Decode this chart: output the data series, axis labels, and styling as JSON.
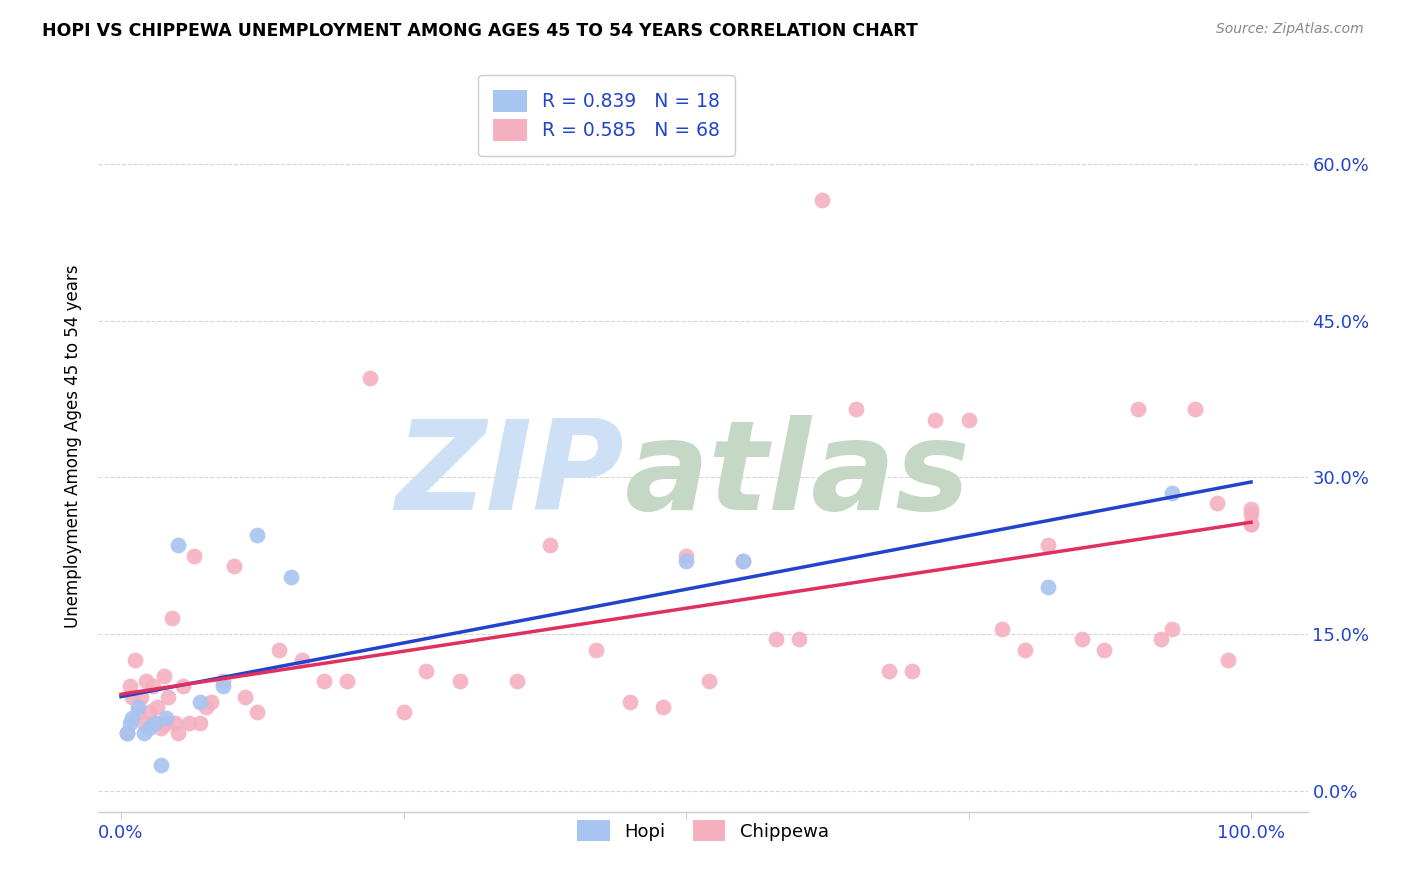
{
  "title": "HOPI VS CHIPPEWA UNEMPLOYMENT AMONG AGES 45 TO 54 YEARS CORRELATION CHART",
  "source": "Source: ZipAtlas.com",
  "ylabel": "Unemployment Among Ages 45 to 54 years",
  "xlim": [
    -0.02,
    1.05
  ],
  "ylim": [
    -0.02,
    0.68
  ],
  "xticks": [
    0.0,
    0.25,
    0.5,
    0.75,
    1.0
  ],
  "xtick_labels": [
    "0.0%",
    "",
    "",
    "",
    "100.0%"
  ],
  "ytick_labels_right": [
    "0.0%",
    "15.0%",
    "30.0%",
    "45.0%",
    "60.0%"
  ],
  "yticks": [
    0.0,
    0.15,
    0.3,
    0.45,
    0.6
  ],
  "hopi_color": "#a8c4f0",
  "chippewa_color": "#f5b0c0",
  "hopi_line_color": "#2244cc",
  "chippewa_line_color": "#e03060",
  "legend_hopi_label": "R = 0.839   N = 18",
  "legend_chippewa_label": "R = 0.585   N = 68",
  "legend_label_color": "#2244cc",
  "hopi_x": [
    0.005,
    0.008,
    0.01,
    0.015,
    0.02,
    0.025,
    0.03,
    0.035,
    0.04,
    0.05,
    0.07,
    0.09,
    0.12,
    0.15,
    0.5,
    0.55,
    0.82,
    0.93
  ],
  "hopi_y": [
    0.055,
    0.065,
    0.07,
    0.08,
    0.055,
    0.06,
    0.065,
    0.025,
    0.07,
    0.235,
    0.085,
    0.1,
    0.245,
    0.205,
    0.22,
    0.22,
    0.195,
    0.285
  ],
  "chippewa_x": [
    0.005,
    0.008,
    0.01,
    0.012,
    0.015,
    0.018,
    0.02,
    0.022,
    0.025,
    0.028,
    0.03,
    0.032,
    0.035,
    0.038,
    0.04,
    0.042,
    0.045,
    0.048,
    0.05,
    0.055,
    0.06,
    0.065,
    0.07,
    0.075,
    0.08,
    0.09,
    0.1,
    0.11,
    0.12,
    0.14,
    0.16,
    0.18,
    0.2,
    0.22,
    0.25,
    0.27,
    0.3,
    0.35,
    0.38,
    0.42,
    0.45,
    0.48,
    0.5,
    0.52,
    0.55,
    0.58,
    0.6,
    0.62,
    0.65,
    0.68,
    0.7,
    0.72,
    0.75,
    0.78,
    0.8,
    0.82,
    0.85,
    0.87,
    0.9,
    0.92,
    0.93,
    0.95,
    0.97,
    0.98,
    1.0,
    1.0,
    1.0,
    1.0
  ],
  "chippewa_y": [
    0.055,
    0.1,
    0.09,
    0.125,
    0.075,
    0.09,
    0.065,
    0.105,
    0.075,
    0.1,
    0.065,
    0.08,
    0.06,
    0.11,
    0.065,
    0.09,
    0.165,
    0.065,
    0.055,
    0.1,
    0.065,
    0.225,
    0.065,
    0.08,
    0.085,
    0.105,
    0.215,
    0.09,
    0.075,
    0.135,
    0.125,
    0.105,
    0.105,
    0.395,
    0.075,
    0.115,
    0.105,
    0.105,
    0.235,
    0.135,
    0.085,
    0.08,
    0.225,
    0.105,
    0.22,
    0.145,
    0.145,
    0.565,
    0.365,
    0.115,
    0.115,
    0.355,
    0.355,
    0.155,
    0.135,
    0.235,
    0.145,
    0.135,
    0.365,
    0.145,
    0.155,
    0.365,
    0.275,
    0.125,
    0.255,
    0.255,
    0.265,
    0.27
  ]
}
